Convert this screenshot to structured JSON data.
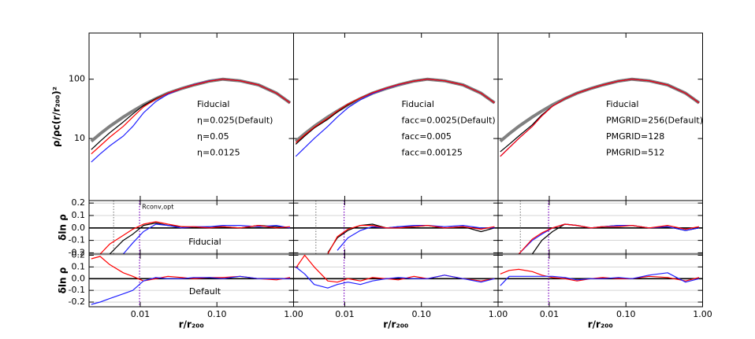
{
  "chart_data": [
    {
      "type": "line",
      "log_x": true,
      "log_y": true,
      "x": [
        0.0023,
        0.003,
        0.004,
        0.006,
        0.008,
        0.011,
        0.016,
        0.023,
        0.035,
        0.05,
        0.08,
        0.12,
        0.2,
        0.35,
        0.6,
        0.9
      ],
      "xlim": [
        0.00215,
        1.0
      ],
      "xticks": [
        0.01,
        0.1,
        1
      ],
      "ylim": [
        0.9,
        600
      ],
      "yticks": [
        10,
        100
      ],
      "ylabel": "ρ/ρc(r/r₂₀₀)²",
      "series": [
        {
          "name": "Fiducial",
          "color": "#808080",
          "width": 4,
          "values": [
            9,
            12,
            16,
            23,
            29,
            37,
            47,
            58,
            70,
            80,
            93,
            100,
            94,
            80,
            58,
            40
          ]
        },
        {
          "name": "η=0.025(Default)",
          "color": "#000000",
          "values": [
            6.5,
            9,
            12.5,
            19,
            26,
            36,
            47,
            58,
            70,
            80,
            93,
            100,
            94,
            80,
            58,
            40
          ]
        },
        {
          "name": "η=0.05",
          "color": "#2020ff",
          "values": [
            4,
            5.5,
            7.5,
            11,
            16,
            27,
            42,
            56,
            70,
            81,
            94,
            100,
            94,
            80,
            58,
            40
          ]
        },
        {
          "name": "η=0.0125",
          "color": "#ff0000",
          "values": [
            5.5,
            7.5,
            10.5,
            16,
            23,
            34,
            46,
            58,
            70,
            80,
            93,
            100,
            94,
            80,
            58,
            40
          ]
        }
      ]
    },
    {
      "type": "line",
      "log_x": true,
      "log_y": true,
      "x": [
        0.0023,
        0.003,
        0.004,
        0.006,
        0.008,
        0.011,
        0.016,
        0.023,
        0.035,
        0.05,
        0.08,
        0.12,
        0.2,
        0.35,
        0.6,
        0.9
      ],
      "xlim": [
        0.00215,
        1.0
      ],
      "xticks": [
        0.01,
        0.1,
        1
      ],
      "ylim": [
        0.9,
        600
      ],
      "yticks": [
        10,
        100
      ],
      "series": [
        {
          "name": "Fiducial",
          "color": "#808080",
          "width": 4,
          "values": [
            9,
            12,
            16,
            23,
            29,
            37,
            47,
            58,
            70,
            80,
            93,
            100,
            94,
            80,
            58,
            40
          ]
        },
        {
          "name": "facc=0.0025(Default)",
          "color": "#000000",
          "values": [
            8,
            11,
            15,
            21,
            28,
            37,
            48,
            59,
            70,
            81,
            93,
            100,
            94,
            80,
            58,
            40
          ]
        },
        {
          "name": "facc=0.005",
          "color": "#2020ff",
          "values": [
            5,
            7,
            10,
            16,
            23,
            33,
            45,
            57,
            70,
            80,
            93,
            100,
            94,
            80,
            58,
            40
          ]
        },
        {
          "name": "facc=0.00125",
          "color": "#ff0000",
          "values": [
            8.5,
            11.5,
            15.5,
            22,
            29,
            38,
            48,
            59,
            71,
            81,
            93,
            100,
            94,
            80,
            58,
            40
          ]
        }
      ]
    },
    {
      "type": "line",
      "log_x": true,
      "log_y": true,
      "x": [
        0.0023,
        0.003,
        0.004,
        0.006,
        0.008,
        0.011,
        0.016,
        0.023,
        0.035,
        0.05,
        0.08,
        0.12,
        0.2,
        0.35,
        0.6,
        0.9
      ],
      "xlim": [
        0.00215,
        1.0
      ],
      "xticks": [
        0.01,
        0.1,
        1
      ],
      "ylim": [
        0.9,
        600
      ],
      "yticks": [
        10,
        100
      ],
      "series": [
        {
          "name": "Fiducial",
          "color": "#808080",
          "width": 4,
          "values": [
            9,
            12,
            16,
            23,
            29,
            37,
            47,
            58,
            70,
            80,
            93,
            100,
            94,
            80,
            58,
            40
          ]
        },
        {
          "name": "PMGRID=256(Default)",
          "color": "#000000",
          "values": [
            6,
            8,
            11,
            17,
            25,
            35,
            47,
            58,
            70,
            80,
            93,
            100,
            94,
            80,
            58,
            40
          ]
        },
        {
          "name": "PMGRID=128",
          "color": "#2020ff",
          "values": [
            5,
            7,
            10,
            16,
            24,
            35,
            47,
            58,
            70,
            80,
            93,
            100,
            94,
            80,
            58,
            40
          ]
        },
        {
          "name": "PMGRID=512",
          "color": "#ff0000",
          "values": [
            5,
            7,
            10,
            16,
            24,
            35,
            47,
            58,
            70,
            80,
            93,
            100,
            94,
            80,
            58,
            40
          ]
        }
      ]
    },
    {
      "type": "line",
      "log_x": true,
      "x": [
        0.0023,
        0.003,
        0.004,
        0.006,
        0.008,
        0.011,
        0.016,
        0.023,
        0.035,
        0.05,
        0.08,
        0.12,
        0.2,
        0.35,
        0.6,
        0.9
      ],
      "xlim": [
        0.00215,
        1.0
      ],
      "xticks": [
        0.01,
        0.1,
        1
      ],
      "ylim": [
        -0.21,
        0.22
      ],
      "yticks": [
        0.2,
        0.1,
        {
          "value": 0,
          "label": "0.0"
        },
        -0.1,
        -0.2
      ],
      "grid": true,
      "refline": 0,
      "ylabel": "δln ρ",
      "annotation": "Fiducial",
      "annotation_color": "#909090",
      "vlines": [
        {
          "x": 0.0045,
          "color": "#888888"
        },
        {
          "x": 0.0098,
          "color": "#7a00c0",
          "label": "Rconv,opt"
        }
      ],
      "series": [
        {
          "color": "#000000",
          "values": [
            null,
            null,
            -0.21,
            -0.1,
            -0.05,
            0.02,
            0.04,
            0.02,
            0.01,
            0.0,
            0.01,
            0.01,
            0.0,
            0.02,
            0.01,
            0.0
          ]
        },
        {
          "color": "#2020ff",
          "values": [
            null,
            null,
            null,
            -0.21,
            -0.12,
            -0.03,
            0.03,
            0.02,
            0.0,
            0.01,
            0.01,
            0.02,
            0.02,
            0.01,
            0.02,
            0.0
          ]
        },
        {
          "color": "#ff0000",
          "values": [
            null,
            -0.21,
            -0.13,
            -0.06,
            -0.01,
            0.03,
            0.05,
            0.03,
            0.01,
            0.01,
            0.0,
            0.01,
            0.0,
            0.02,
            0.0,
            0.01
          ]
        }
      ]
    },
    {
      "type": "line",
      "log_x": true,
      "x": [
        0.0023,
        0.003,
        0.004,
        0.006,
        0.008,
        0.011,
        0.016,
        0.023,
        0.035,
        0.05,
        0.08,
        0.12,
        0.2,
        0.35,
        0.6,
        0.9
      ],
      "xlim": [
        0.00215,
        1.0
      ],
      "xticks": [
        0.01,
        0.1,
        1
      ],
      "ylim": [
        -0.21,
        0.22
      ],
      "yticks": [
        0.2,
        0.1,
        0,
        -0.1,
        -0.2
      ],
      "grid": true,
      "refline": 0,
      "vlines": [
        {
          "x": 0.0042,
          "color": "#888888"
        },
        {
          "x": 0.0098,
          "color": "#7a00c0"
        }
      ],
      "series": [
        {
          "color": "#000000",
          "values": [
            null,
            null,
            null,
            -0.2,
            -0.08,
            -0.02,
            0.02,
            0.03,
            0.0,
            0.01,
            0.01,
            0.02,
            0.0,
            0.01,
            -0.03,
            0.0
          ]
        },
        {
          "color": "#2020ff",
          "values": [
            null,
            null,
            null,
            null,
            -0.18,
            -0.08,
            -0.02,
            0.01,
            0.0,
            0.01,
            0.02,
            0.02,
            0.01,
            0.02,
            0.0,
            0.0
          ]
        },
        {
          "color": "#ff0000",
          "values": [
            null,
            null,
            null,
            -0.21,
            -0.07,
            -0.01,
            0.02,
            0.02,
            0.0,
            0.0,
            0.01,
            0.02,
            0.0,
            0.01,
            -0.01,
            0.01
          ]
        }
      ]
    },
    {
      "type": "line",
      "log_x": true,
      "x": [
        0.0023,
        0.003,
        0.004,
        0.006,
        0.008,
        0.011,
        0.016,
        0.023,
        0.035,
        0.05,
        0.08,
        0.12,
        0.2,
        0.35,
        0.6,
        0.9
      ],
      "xlim": [
        0.00215,
        1.0
      ],
      "xticks": [
        0.01,
        0.1,
        1
      ],
      "ylim": [
        -0.21,
        0.22
      ],
      "yticks": [
        0.2,
        0.1,
        0,
        -0.1,
        -0.2
      ],
      "grid": true,
      "refline": 0,
      "vlines": [
        {
          "x": 0.0042,
          "color": "#888888"
        },
        {
          "x": 0.0098,
          "color": "#7a00c0"
        }
      ],
      "series": [
        {
          "color": "#000000",
          "values": [
            null,
            null,
            null,
            -0.21,
            -0.1,
            -0.03,
            0.03,
            0.02,
            0.0,
            0.01,
            0.02,
            0.02,
            0.0,
            0.01,
            -0.02,
            0.0
          ]
        },
        {
          "color": "#2020ff",
          "values": [
            null,
            null,
            -0.21,
            -0.1,
            -0.05,
            0.0,
            0.03,
            0.02,
            0.0,
            0.01,
            0.02,
            0.02,
            0.0,
            0.01,
            -0.02,
            0.0
          ]
        },
        {
          "color": "#ff0000",
          "values": [
            null,
            null,
            -0.21,
            -0.09,
            -0.04,
            0.0,
            0.03,
            0.02,
            0.0,
            0.01,
            0.01,
            0.02,
            0.0,
            0.02,
            -0.01,
            0.01
          ]
        }
      ]
    },
    {
      "type": "line",
      "log_x": true,
      "x": [
        0.0023,
        0.003,
        0.004,
        0.006,
        0.008,
        0.011,
        0.016,
        0.023,
        0.035,
        0.05,
        0.08,
        0.12,
        0.2,
        0.35,
        0.6,
        0.9
      ],
      "xlim": [
        0.00215,
        1.0
      ],
      "xticks": [
        {
          "value": 0.01,
          "label": "0.01"
        },
        {
          "value": 0.1,
          "label": "0.10"
        },
        {
          "value": 1,
          "label": "1.00"
        }
      ],
      "ylim": [
        -0.24,
        0.21
      ],
      "yticks": [
        0.2,
        0.1,
        {
          "value": 0,
          "label": "0.0"
        },
        -0.1,
        -0.2
      ],
      "grid": true,
      "refline": 0,
      "xlabel": "r/r₂₀₀",
      "ylabel": "δln ρ",
      "annotation": "Default",
      "annotation_color": "#000000",
      "vlines": [
        {
          "x": 0.0098,
          "color": "#7a00c0"
        }
      ],
      "series": [
        {
          "color": "#ff0000",
          "values": [
            0.17,
            0.19,
            0.12,
            0.05,
            0.02,
            -0.02,
            0.0,
            0.02,
            0.01,
            0.0,
            0.01,
            0.01,
            0.02,
            0.0,
            -0.01,
            0.01
          ]
        },
        {
          "color": "#2020ff",
          "values": [
            -0.22,
            -0.2,
            -0.17,
            -0.13,
            -0.1,
            -0.02,
            0.01,
            0.0,
            0.0,
            0.01,
            0.01,
            0.0,
            0.02,
            0.0,
            0.0,
            0.0
          ]
        }
      ]
    },
    {
      "type": "line",
      "log_x": true,
      "x": [
        0.0023,
        0.003,
        0.004,
        0.006,
        0.008,
        0.011,
        0.016,
        0.023,
        0.035,
        0.05,
        0.08,
        0.12,
        0.2,
        0.35,
        0.6,
        0.9
      ],
      "xlim": [
        0.00215,
        1.0
      ],
      "xticks": [
        {
          "value": 0.01,
          "label": "0.01"
        },
        {
          "value": 0.1,
          "label": "0.10"
        },
        {
          "value": 1,
          "label": "1.00"
        }
      ],
      "ylim": [
        -0.24,
        0.21
      ],
      "yticks": [
        0.2,
        0.1,
        0,
        -0.1,
        -0.2
      ],
      "grid": true,
      "refline": 0,
      "xlabel": "r/r₂₀₀",
      "vlines": [
        {
          "x": 0.0098,
          "color": "#7a00c0"
        }
      ],
      "series": [
        {
          "color": "#ff0000",
          "values": [
            0.09,
            0.2,
            0.1,
            -0.02,
            -0.03,
            0.0,
            -0.02,
            0.01,
            0.0,
            -0.01,
            0.02,
            0.0,
            0.03,
            0.0,
            -0.02,
            0.0
          ]
        },
        {
          "color": "#2020ff",
          "values": [
            0.1,
            0.04,
            -0.05,
            -0.08,
            -0.05,
            -0.03,
            -0.05,
            -0.02,
            0.0,
            0.01,
            0.0,
            0.0,
            0.03,
            0.0,
            -0.03,
            0.0
          ]
        }
      ]
    },
    {
      "type": "line",
      "log_x": true,
      "x": [
        0.0023,
        0.003,
        0.004,
        0.006,
        0.008,
        0.011,
        0.016,
        0.023,
        0.035,
        0.05,
        0.08,
        0.12,
        0.2,
        0.35,
        0.6,
        0.9
      ],
      "xlim": [
        0.00215,
        1.0
      ],
      "xticks": [
        0.01,
        {
          "value": 0.1,
          "label": "0.10"
        },
        {
          "value": 1,
          "label": "1.00"
        }
      ],
      "ylim": [
        -0.24,
        0.21
      ],
      "yticks": [
        0.2,
        0.1,
        0,
        -0.1,
        -0.2
      ],
      "grid": true,
      "refline": 0,
      "xlabel": "r/r₂₀₀",
      "vlines": [
        {
          "x": 0.0098,
          "color": "#7a00c0"
        }
      ],
      "series": [
        {
          "color": "#ff0000",
          "values": [
            0.04,
            0.07,
            0.08,
            0.06,
            0.03,
            0.01,
            0.0,
            -0.02,
            0.0,
            0.01,
            0.0,
            0.0,
            0.02,
            0.01,
            -0.02,
            0.01
          ]
        },
        {
          "color": "#2020ff",
          "values": [
            -0.06,
            0.02,
            0.02,
            0.02,
            0.02,
            0.02,
            0.01,
            -0.01,
            0.0,
            0.0,
            0.01,
            0.0,
            0.03,
            0.05,
            -0.03,
            0.0
          ]
        }
      ]
    }
  ]
}
